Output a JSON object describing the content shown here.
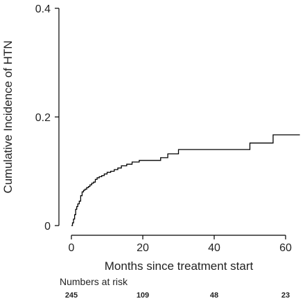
{
  "chart_data": {
    "type": "line",
    "title": "",
    "xlabel": "Months since treatment start",
    "ylabel": "Cumulative Incidence of HTN",
    "xlim": [
      0,
      64
    ],
    "ylim": [
      0,
      0.4
    ],
    "x_ticks": [
      0,
      20,
      40,
      60
    ],
    "y_ticks": [
      0,
      0.2,
      0.4
    ],
    "x_tick_labels": [
      "0",
      "20",
      "40",
      "60"
    ],
    "y_tick_labels": [
      "0",
      "0.2",
      "0.4"
    ],
    "grid": false,
    "legend": "none",
    "line_color": "#000000",
    "series": [
      {
        "step": true,
        "x": [
          0,
          0.3,
          0.6,
          0.9,
          1.2,
          1.5,
          1.8,
          2.2,
          2.6,
          3.0,
          3.4,
          3.8,
          4.3,
          4.8,
          5.2,
          5.7,
          6.2,
          6.7,
          7.2,
          7.8,
          8.5,
          9.2,
          10.0,
          11.0,
          12.0,
          13.0,
          14.0,
          15.5,
          17.0,
          19.0,
          25.0,
          27.0,
          30.0,
          50.0,
          56.5,
          64.0
        ],
        "y": [
          0.0,
          0.005,
          0.012,
          0.02,
          0.03,
          0.035,
          0.04,
          0.045,
          0.055,
          0.062,
          0.065,
          0.067,
          0.07,
          0.072,
          0.075,
          0.078,
          0.08,
          0.085,
          0.088,
          0.09,
          0.092,
          0.095,
          0.098,
          0.1,
          0.103,
          0.106,
          0.11,
          0.113,
          0.117,
          0.12,
          0.125,
          0.132,
          0.14,
          0.152,
          0.167,
          0.167
        ]
      }
    ],
    "risk_table": {
      "title": "Numbers at risk",
      "times": [
        0,
        20,
        40,
        60
      ],
      "values": [
        "245",
        "109",
        "48",
        "23"
      ]
    }
  }
}
